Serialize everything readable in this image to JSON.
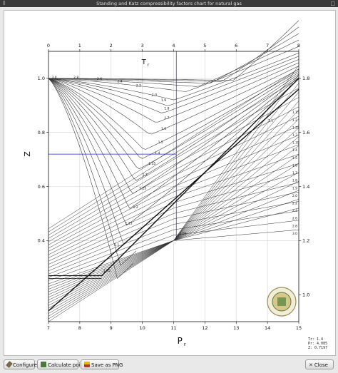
{
  "window": {
    "title": "Standing and Katz compressibility factors chart for natural gas",
    "left_glyph": "⠿",
    "right_glyph": "□"
  },
  "chart_data": {
    "type": "line",
    "top_axis": {
      "label": "T",
      "label_sub": "r",
      "range": [
        0,
        8
      ],
      "ticks": [
        "0",
        "1",
        "2",
        "3",
        "4",
        "5",
        "6",
        "7",
        "8"
      ]
    },
    "bottom_axis": {
      "label": "P",
      "label_sub": "r",
      "range": [
        7,
        15
      ],
      "ticks": [
        "7",
        "8",
        "9",
        "10",
        "11",
        "12",
        "13",
        "14",
        "15"
      ]
    },
    "left_axis": {
      "label": "Z",
      "range": [
        0.1,
        1.1
      ],
      "ticks": [
        "0.4",
        "0.6",
        "0.8",
        "1.0"
      ]
    },
    "right_axis": {
      "range": [
        0.9,
        1.9
      ],
      "ticks": [
        "1.0",
        "1.2",
        "1.4",
        "1.6",
        "1.8"
      ]
    },
    "left_curve_labels": [
      "3.0",
      "2.8",
      "2.6",
      "2.4",
      "2.2",
      "2.0",
      "1.9",
      "1.8",
      "1.7",
      "1.6",
      "1.5",
      "1.4",
      "1.35",
      "1.3",
      "1.25",
      "1.2",
      "1.15",
      "1.1",
      "1.05"
    ],
    "right_curve_labels": [
      "1.15",
      "1.2",
      "1.25",
      "1.3",
      "1.35",
      "1.4",
      "1.5",
      "1.6",
      "1.7",
      "1.8",
      "1.9",
      "2.0",
      "2.2",
      "2.4",
      "2.6",
      "2.8",
      "3.0"
    ],
    "mid_labels": [
      "1.05",
      "1.1"
    ],
    "grid": true,
    "crosshair": {
      "Tr": 1.4,
      "Pr": 4.085,
      "Z": 0.7197
    }
  },
  "readout": {
    "line1": "Tr: 1.4",
    "line2": "Pr: 4.085",
    "line3": "Z: 0.7197"
  },
  "toolbar": {
    "configure_label": "Configure",
    "calc_label": "Calculate point",
    "png_label": "Save as PNG",
    "close_label": "Close"
  },
  "colors": {
    "crosshair": "#1e28d2",
    "curve": "#333333"
  }
}
